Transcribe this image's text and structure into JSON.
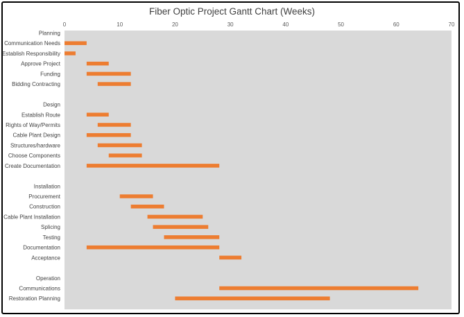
{
  "chart_data": {
    "type": "bar",
    "orientation": "horizontal",
    "stacked": true,
    "title": "Fiber Optic Project Gantt Chart (Weeks)",
    "xlabel": "",
    "ylabel": "",
    "xlim": [
      0,
      70
    ],
    "x_ticks": [
      0,
      10,
      20,
      30,
      40,
      50,
      60,
      70
    ],
    "x_axis_position": "top",
    "grid": false,
    "legend": "none",
    "plot_background": "#d9d9d9",
    "bar_color": "#ed7d31",
    "categories": [
      "Planning",
      "Communication Needs",
      "Establish Responsibility",
      "Approve Project",
      "Funding",
      "Bidding Contracting",
      "",
      "Design",
      "Establish Route",
      "Rights of Way/Permits",
      "Cable Plant Design",
      "Structures/hardware",
      "Choose Components",
      "Create Documentation",
      "",
      "Installation",
      "Procurement",
      "Construction",
      "Cable Plant Installation",
      "Splicing",
      "Testing",
      "Documentation",
      "Acceptance",
      "",
      "Operation",
      "Communications",
      "Restoration Planning"
    ],
    "series": [
      {
        "role": "start",
        "visible": false,
        "values": [
          null,
          0,
          0,
          4,
          4,
          6,
          null,
          null,
          4,
          6,
          4,
          6,
          8,
          4,
          null,
          null,
          10,
          12,
          15,
          16,
          18,
          4,
          28,
          null,
          null,
          28,
          20
        ]
      },
      {
        "role": "duration",
        "visible": true,
        "values": [
          null,
          4,
          2,
          4,
          8,
          6,
          null,
          null,
          4,
          6,
          8,
          8,
          6,
          24,
          null,
          null,
          6,
          6,
          10,
          10,
          10,
          24,
          4,
          null,
          null,
          36,
          28
        ]
      }
    ]
  }
}
